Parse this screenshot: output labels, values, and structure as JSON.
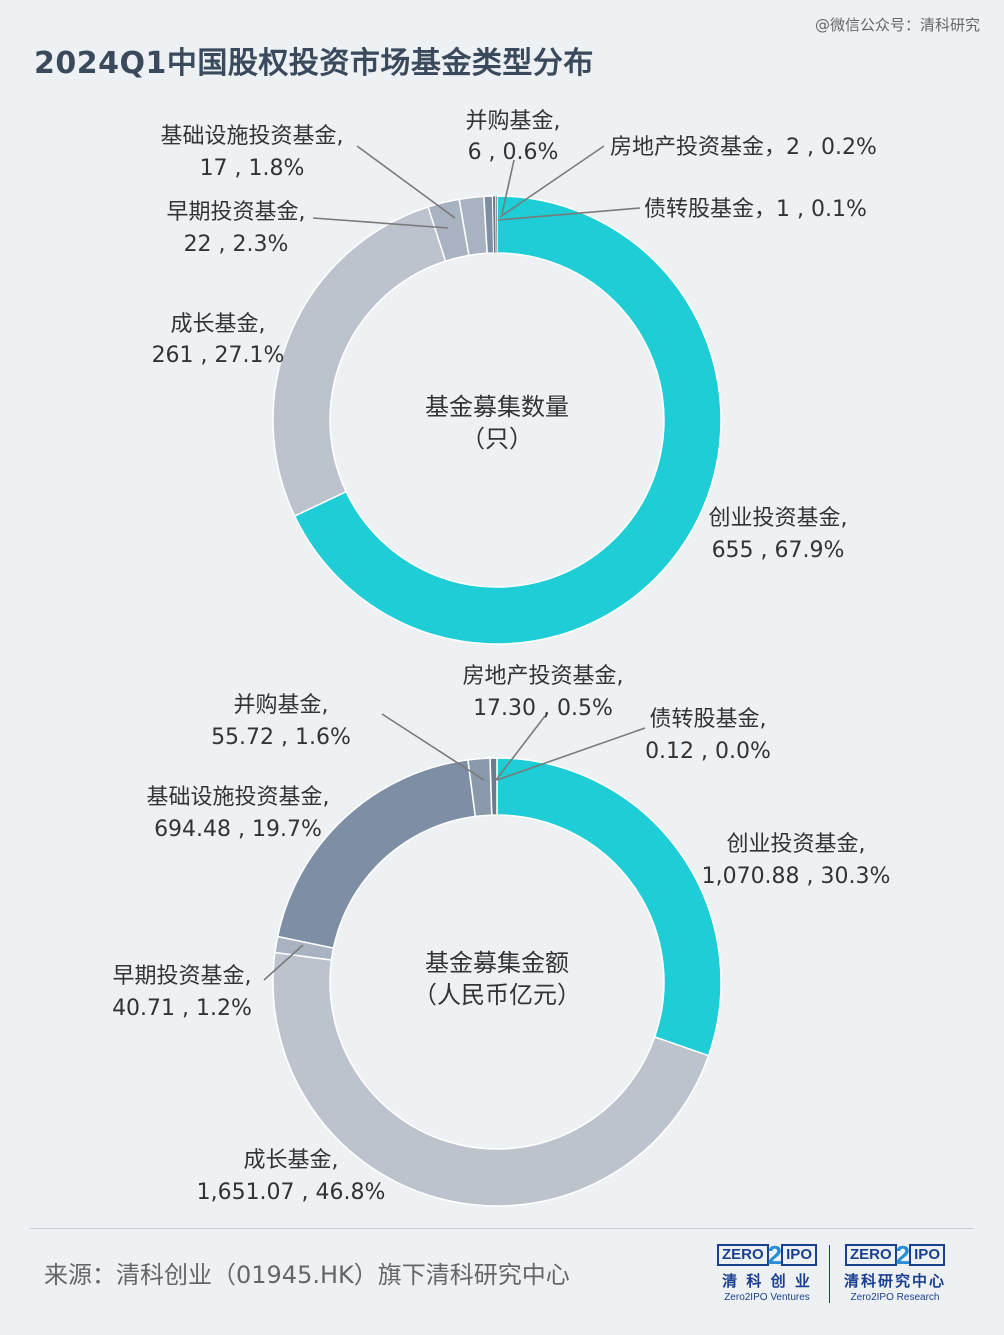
{
  "watermark": "@微信公众号：清科研究",
  "title": "2024Q1中国股权投资市场基金类型分布",
  "colors": {
    "vc": "#1ecdd6",
    "growth": "#bdc3cd",
    "early": "#a8b2c0",
    "infra": "#7e8ea5",
    "ma": "#8b99ac",
    "realestate": "#6d7b8d",
    "debt": "#5d6b7c"
  },
  "chart_data": [
    {
      "type": "pie",
      "donut": true,
      "title": "",
      "center_label": [
        "基金募集数量",
        "（只）"
      ],
      "slices": [
        {
          "name": "创业投资基金",
          "value": 655,
          "percent": "67.9%",
          "value_text": "655",
          "color_key": "vc"
        },
        {
          "name": "成长基金",
          "value": 261,
          "percent": "27.1%",
          "value_text": "261",
          "color_key": "growth"
        },
        {
          "name": "早期投资基金",
          "value": 22,
          "percent": "2.3%",
          "value_text": "22",
          "color_key": "early"
        },
        {
          "name": "基础设施投资基金",
          "value": 17,
          "percent": "1.8%",
          "value_text": "17",
          "color_key": "early"
        },
        {
          "name": "并购基金",
          "value": 6,
          "percent": "0.6%",
          "value_text": "6",
          "color_key": "infra"
        },
        {
          "name": "房地产投资基金",
          "value": 2,
          "percent": "0.2%",
          "value_text": "2",
          "color_key": "realestate"
        },
        {
          "name": "债转股基金",
          "value": 1,
          "percent": "0.1%",
          "value_text": "1",
          "color_key": "debt"
        }
      ]
    },
    {
      "type": "pie",
      "donut": true,
      "title": "",
      "center_label": [
        "基金募集金额",
        "（人民币亿元）"
      ],
      "slices": [
        {
          "name": "创业投资基金",
          "value": 1070.88,
          "percent": "30.3%",
          "value_text": "1,070.88",
          "color_key": "vc"
        },
        {
          "name": "成长基金",
          "value": 1651.07,
          "percent": "46.8%",
          "value_text": "1,651.07",
          "color_key": "growth"
        },
        {
          "name": "早期投资基金",
          "value": 40.71,
          "percent": "1.2%",
          "value_text": "40.71",
          "color_key": "early"
        },
        {
          "name": "基础设施投资基金",
          "value": 694.48,
          "percent": "19.7%",
          "value_text": "694.48",
          "color_key": "infra"
        },
        {
          "name": "并购基金",
          "value": 55.72,
          "percent": "1.6%",
          "value_text": "55.72",
          "color_key": "ma"
        },
        {
          "name": "房地产投资基金",
          "value": 17.3,
          "percent": "0.5%",
          "value_text": "17.30",
          "color_key": "realestate"
        },
        {
          "name": "债转股基金",
          "value": 0.12,
          "percent": "0.0%",
          "value_text": "0.12",
          "color_key": "debt"
        }
      ]
    }
  ],
  "footer": {
    "source": "来源：清科创业（01945.HK）旗下清科研究中心",
    "logo_left": {
      "zero": "ZERO",
      "two": "2",
      "ipo": "IPO",
      "cn": "清 科 创 业",
      "en": "Zero2IPO Ventures"
    },
    "logo_right": {
      "zero": "ZERO",
      "two": "2",
      "ipo": "IPO",
      "cn": "清科研究中心",
      "en": "Zero2IPO Research"
    }
  }
}
